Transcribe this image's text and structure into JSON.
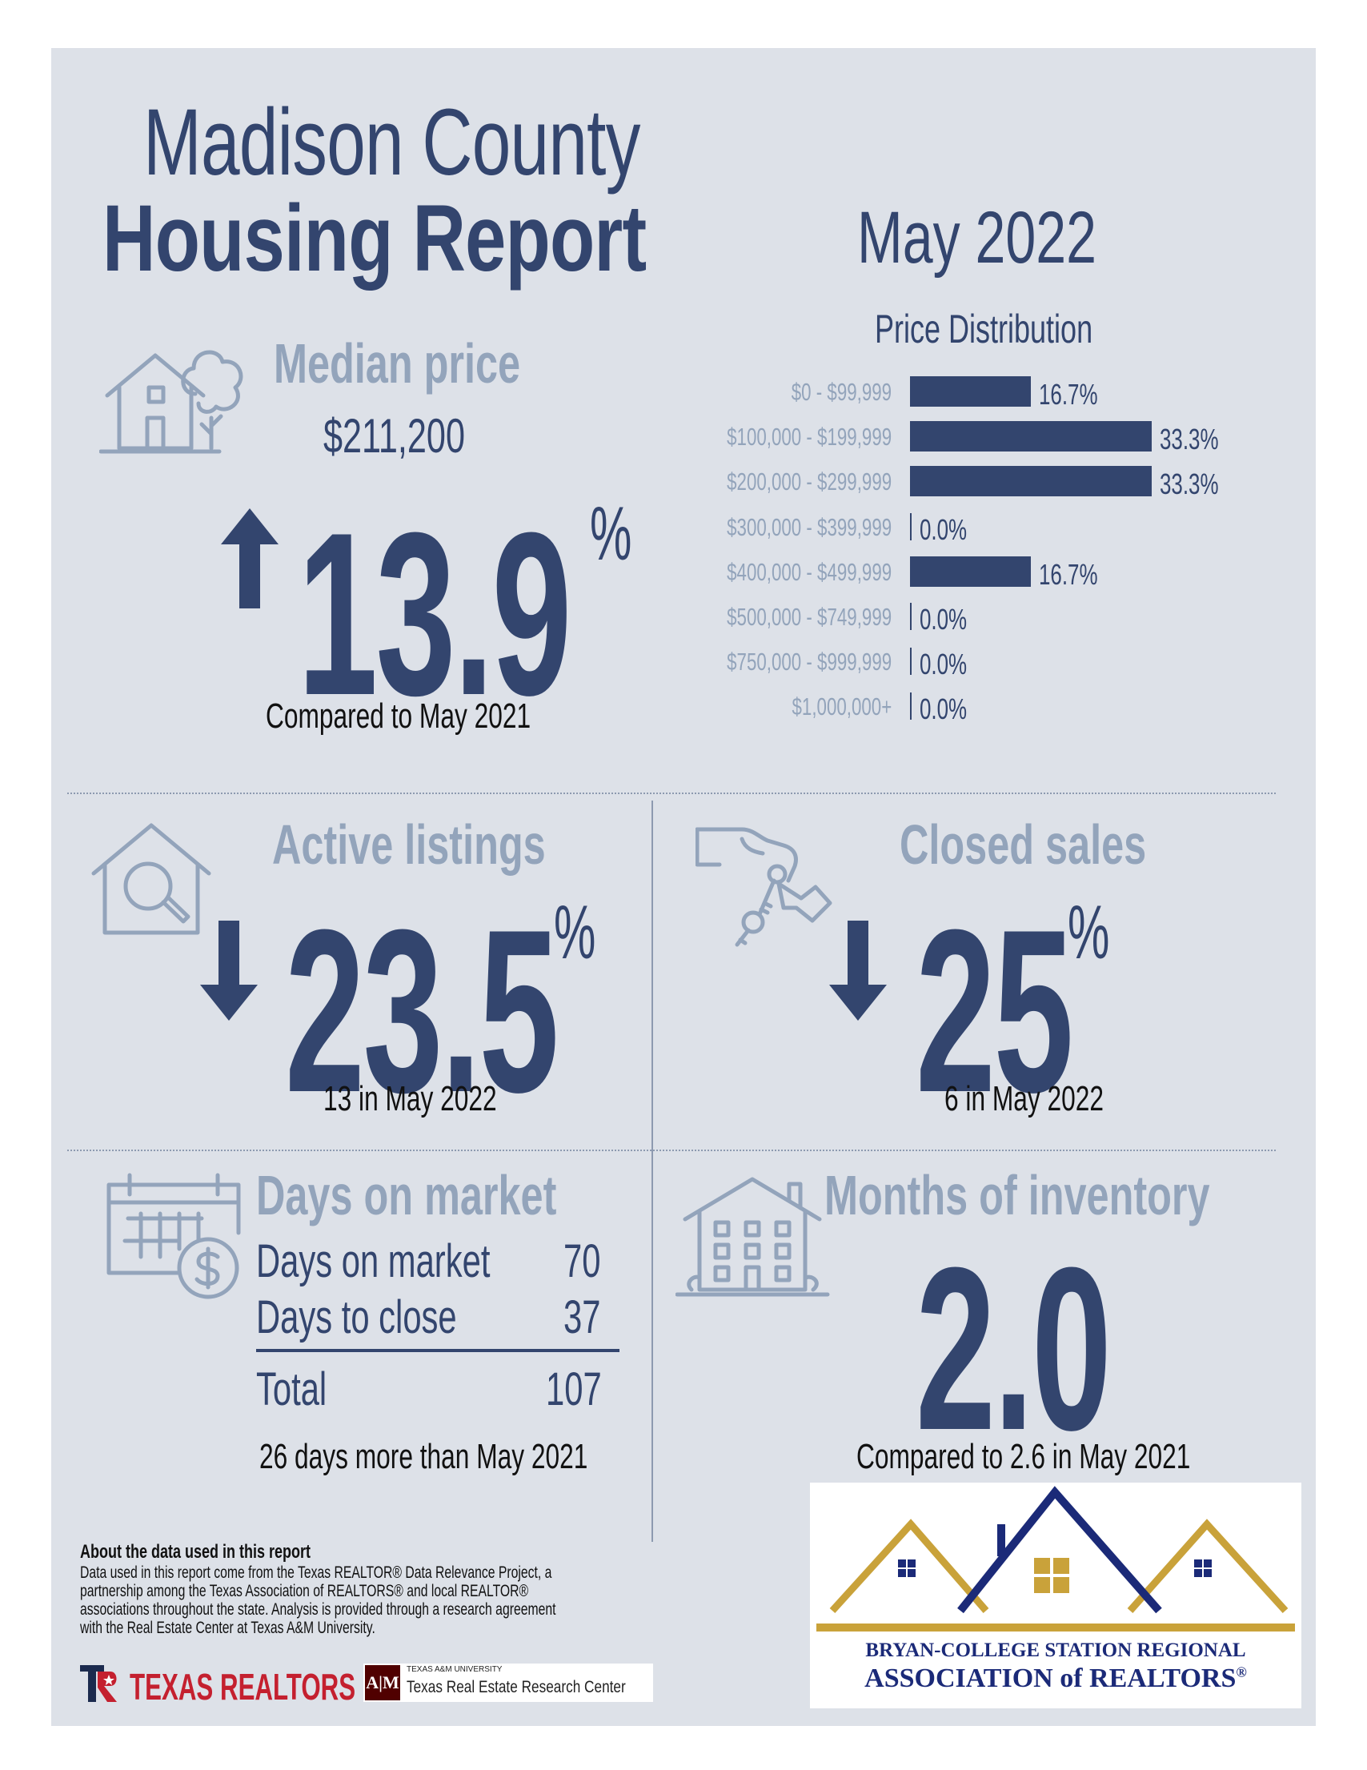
{
  "header": {
    "title_line1": "Madison County",
    "title_line2": "Housing Report",
    "month": "May 2022"
  },
  "median_price": {
    "heading": "Median price",
    "value": "$211,200",
    "change": "13.9",
    "percent_sign": "%",
    "direction": "up",
    "compare": "Compared to May 2021"
  },
  "chart_data": {
    "type": "bar",
    "title": "Price Distribution",
    "orientation": "horizontal",
    "categories": [
      "$0 - $99,999",
      "$100,000 - $199,999",
      "$200,000 - $299,999",
      "$300,000 - $399,999",
      "$400,000 - $499,999",
      "$500,000 - $749,999",
      "$750,000 - $999,999",
      "$1,000,000+"
    ],
    "values": [
      16.7,
      33.3,
      33.3,
      0.0,
      16.7,
      0.0,
      0.0,
      0.0
    ],
    "value_labels": [
      "16.7%",
      "33.3%",
      "33.3%",
      "0.0%",
      "16.7%",
      "0.0%",
      "0.0%",
      "0.0%"
    ],
    "xlim": [
      0,
      33.3
    ],
    "grid": false,
    "color": "#33456e"
  },
  "active_listings": {
    "heading": "Active listings",
    "change": "23.5",
    "percent_sign": "%",
    "direction": "down",
    "note": "13 in May 2022"
  },
  "closed_sales": {
    "heading": "Closed sales",
    "change": "25",
    "percent_sign": "%",
    "direction": "down",
    "note": "6 in May 2022"
  },
  "days_on_market": {
    "heading": "Days on market",
    "rows": [
      {
        "label": "Days on market",
        "value": "70"
      },
      {
        "label": "Days to close",
        "value": "37"
      }
    ],
    "total_label": "Total",
    "total_value": "107",
    "note": "26 days more than May 2021"
  },
  "months_inventory": {
    "heading": "Months of inventory",
    "value": "2.0",
    "note": "Compared to 2.6 in May 2021"
  },
  "about": {
    "heading": "About the data used in this report",
    "lines": [
      "Data used in this report come from the Texas REALTOR® Data Relevance Project, a",
      "partnership among the Texas Association of REALTORS® and local REALTOR®",
      "associations throughout the state. Analysis is provided through a research agreement",
      "with the Real Estate Center at Texas A&M University."
    ]
  },
  "logos": {
    "texas_realtors": "TEXAS REALTORS",
    "tamu_small": "TEXAS A&M UNIVERSITY",
    "tamu_center": "Texas Real Estate Research Center",
    "association_line1": "BRYAN-COLLEGE STATION REGIONAL",
    "association_line2": "ASSOCIATION of REALTORS",
    "registered": "®"
  },
  "colors": {
    "navy": "#33456e",
    "steel": "#93a4bb",
    "background": "#dde1e8",
    "gold": "#c9a23a",
    "association_navy": "#1b2a78"
  },
  "icons": [
    "house-tree-icon",
    "up-arrow-icon",
    "house-search-icon",
    "down-arrow-icon",
    "hand-keys-icon",
    "calendar-dollar-icon",
    "apartment-building-icon"
  ]
}
